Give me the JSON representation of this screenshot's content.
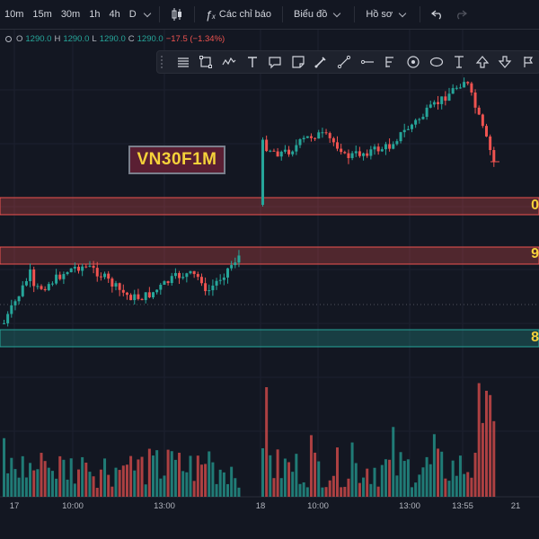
{
  "topbar": {
    "timeframes": [
      "10m",
      "15m",
      "30m",
      "1h",
      "4h",
      "D"
    ],
    "indicators_label": "Các chỉ báo",
    "chart_type_label": "Biểu đồ",
    "profile_label": "Hồ sơ"
  },
  "ohlc": {
    "o_label": "O",
    "o": "1290.0",
    "h_label": "H",
    "h": "1290.0",
    "l_label": "L",
    "l": "1290.0",
    "c_label": "C",
    "c": "1290.0",
    "change": "−17.5 (−1.34%)"
  },
  "drawing_tools": [
    "horizontal-lines-icon",
    "rectangle-icon",
    "wave-icon",
    "text-icon",
    "callout-icon",
    "note-icon",
    "brush-icon",
    "line-icon",
    "pitchfork-icon",
    "circle-icon",
    "ellipse-icon",
    "anchor-icon",
    "arrow-up-icon",
    "arrow-down-icon",
    "flag-icon"
  ],
  "symbol_label": "VN30F1M",
  "zones": [
    {
      "value": "0",
      "color": "#ef5350"
    },
    {
      "value": "9",
      "color": "#ef5350"
    },
    {
      "value": "8",
      "color": "#26a69a"
    }
  ],
  "x_axis": [
    "17",
    "10:00",
    "13:00",
    "18",
    "10:00",
    "13:00",
    "13:55",
    "21"
  ],
  "colors": {
    "up": "#26a69a",
    "down": "#ef5350",
    "background": "#131722",
    "label_text": "#f5d23a"
  },
  "chart_data": {
    "type": "candlestick",
    "title": "VN30F1M",
    "xlabel": "",
    "ylabel": "",
    "last_price": 1290.0,
    "sessions": [
      {
        "label": "17",
        "candles": 64,
        "start": 1262,
        "end": 1281,
        "high": 1283,
        "low": 1259
      },
      {
        "label": "18",
        "candles": 63,
        "start": 1290,
        "end": 1318,
        "high": 1319,
        "low": 1290
      }
    ],
    "zones": [
      {
        "label": "0",
        "color": "red"
      },
      {
        "label": "9",
        "color": "red"
      },
      {
        "label": "8",
        "color": "green"
      }
    ]
  }
}
